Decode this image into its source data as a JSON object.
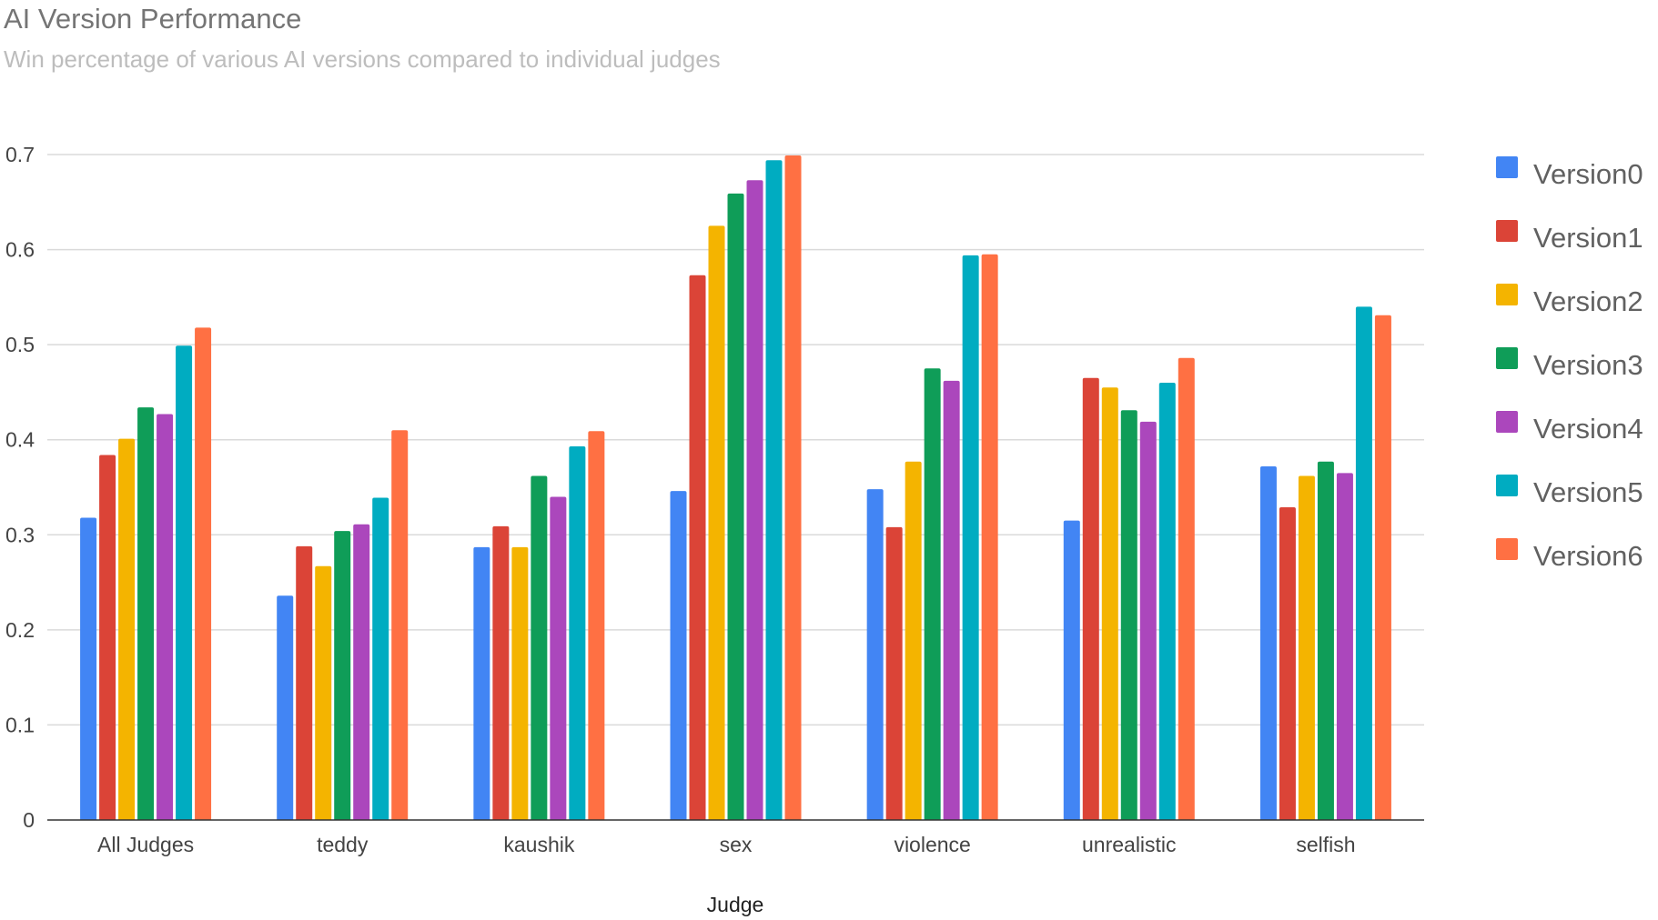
{
  "chart_data": {
    "type": "bar",
    "title": "AI Version Performance",
    "subtitle": "Win percentage of various AI versions compared to individual judges",
    "xlabel": "Judge",
    "ylabel": "",
    "ylim": [
      0,
      0.7
    ],
    "yticks": [
      "0",
      "0.1",
      "0.2",
      "0.3",
      "0.4",
      "0.5",
      "0.6",
      "0.7"
    ],
    "grid": true,
    "legend_position": "right",
    "categories": [
      "All Judges",
      "teddy",
      "kaushik",
      "sex",
      "violence",
      "unrealistic",
      "selfish"
    ],
    "series": [
      {
        "name": "Version0",
        "color": "#4285F4",
        "values": [
          0.318,
          0.236,
          0.287,
          0.346,
          0.348,
          0.315,
          0.372
        ]
      },
      {
        "name": "Version1",
        "color": "#DB4437",
        "values": [
          0.384,
          0.288,
          0.309,
          0.573,
          0.308,
          0.465,
          0.329
        ]
      },
      {
        "name": "Version2",
        "color": "#F4B400",
        "values": [
          0.401,
          0.267,
          0.287,
          0.625,
          0.377,
          0.455,
          0.362
        ]
      },
      {
        "name": "Version3",
        "color": "#0F9D58",
        "values": [
          0.434,
          0.304,
          0.362,
          0.659,
          0.475,
          0.431,
          0.377
        ]
      },
      {
        "name": "Version4",
        "color": "#AB47BC",
        "values": [
          0.427,
          0.311,
          0.34,
          0.673,
          0.462,
          0.419,
          0.365
        ]
      },
      {
        "name": "Version5",
        "color": "#00ACC1",
        "values": [
          0.499,
          0.339,
          0.393,
          0.694,
          0.594,
          0.46,
          0.54
        ]
      },
      {
        "name": "Version6",
        "color": "#FF7043",
        "values": [
          0.518,
          0.41,
          0.409,
          0.699,
          0.595,
          0.486,
          0.531
        ]
      }
    ]
  }
}
